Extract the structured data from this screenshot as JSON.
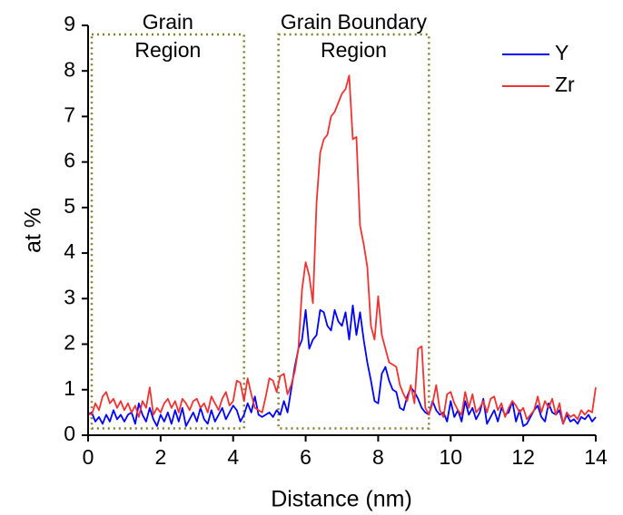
{
  "chart_data": {
    "type": "line",
    "xlabel": "Distance (nm)",
    "ylabel": "at %",
    "xlim": [
      0,
      14
    ],
    "ylim": [
      0,
      9
    ],
    "xticks": [
      0,
      2,
      4,
      6,
      8,
      10,
      12,
      14
    ],
    "yticks": [
      0,
      1,
      2,
      3,
      4,
      5,
      6,
      7,
      8,
      9
    ],
    "legend": "upper right",
    "x": [
      0,
      0.1,
      0.2,
      0.3,
      0.4,
      0.5,
      0.6,
      0.7,
      0.8,
      0.9,
      1,
      1.1,
      1.2,
      1.3,
      1.4,
      1.5,
      1.6,
      1.7,
      1.8,
      1.9,
      2,
      2.1,
      2.2,
      2.3,
      2.4,
      2.5,
      2.6,
      2.7,
      2.8,
      2.9,
      3,
      3.1,
      3.2,
      3.3,
      3.4,
      3.5,
      3.6,
      3.7,
      3.8,
      3.9,
      4,
      4.1,
      4.2,
      4.3,
      4.4,
      4.5,
      4.6,
      4.7,
      4.8,
      4.9,
      5,
      5.1,
      5.2,
      5.3,
      5.4,
      5.5,
      5.6,
      5.7,
      5.8,
      5.9,
      6,
      6.1,
      6.2,
      6.3,
      6.4,
      6.5,
      6.6,
      6.7,
      6.8,
      6.9,
      7,
      7.1,
      7.2,
      7.3,
      7.4,
      7.5,
      7.6,
      7.7,
      7.8,
      7.9,
      8,
      8.1,
      8.2,
      8.3,
      8.4,
      8.5,
      8.6,
      8.7,
      8.8,
      8.9,
      9,
      9.1,
      9.2,
      9.3,
      9.4,
      9.5,
      9.6,
      9.7,
      9.8,
      9.9,
      10,
      10.1,
      10.2,
      10.3,
      10.4,
      10.5,
      10.6,
      10.7,
      10.8,
      10.9,
      11,
      11.1,
      11.2,
      11.3,
      11.4,
      11.5,
      11.6,
      11.7,
      11.8,
      11.9,
      12,
      12.1,
      12.2,
      12.3,
      12.4,
      12.5,
      12.6,
      12.7,
      12.8,
      12.9,
      13,
      13.1,
      13.2,
      13.3,
      13.4,
      13.5,
      13.6,
      13.7,
      13.8,
      13.9,
      14
    ],
    "series": [
      {
        "name": "Y",
        "color": "#0000ff",
        "values": [
          0.45,
          0.5,
          0.3,
          0.4,
          0.25,
          0.45,
          0.3,
          0.55,
          0.35,
          0.45,
          0.3,
          0.45,
          0.5,
          0.25,
          0.7,
          0.45,
          0.3,
          0.6,
          0.35,
          0.2,
          0.45,
          0.3,
          0.5,
          0.25,
          0.55,
          0.3,
          0.6,
          0.2,
          0.35,
          0.5,
          0.3,
          0.6,
          0.35,
          0.25,
          0.55,
          0.3,
          0.45,
          0.6,
          0.35,
          0.5,
          0.65,
          0.55,
          0.3,
          0.45,
          0.7,
          0.5,
          0.85,
          0.45,
          0.4,
          0.45,
          0.5,
          0.4,
          0.55,
          0.45,
          0.75,
          0.5,
          1.0,
          1.5,
          1.9,
          2.1,
          2.75,
          1.9,
          2.1,
          2.2,
          2.75,
          2.7,
          2.4,
          2.3,
          2.75,
          2.5,
          2.4,
          2.7,
          2.1,
          2.85,
          2.2,
          2.7,
          2.1,
          1.6,
          1.2,
          0.75,
          0.7,
          1.35,
          1.5,
          1.2,
          1.0,
          0.95,
          0.6,
          0.55,
          0.85,
          1.05,
          0.95,
          0.8,
          0.6,
          0.5,
          0.45,
          0.75,
          0.55,
          0.45,
          0.5,
          0.3,
          0.75,
          0.4,
          0.55,
          0.3,
          0.75,
          0.45,
          0.6,
          0.35,
          0.5,
          0.8,
          0.25,
          0.4,
          0.55,
          0.3,
          0.6,
          0.45,
          0.5,
          0.75,
          0.3,
          0.55,
          0.2,
          0.25,
          0.4,
          0.55,
          0.65,
          0.4,
          0.3,
          0.7,
          0.5,
          0.45,
          0.55,
          0.25,
          0.45,
          0.3,
          0.35,
          0.25,
          0.4,
          0.35,
          0.45,
          0.3,
          0.4
        ]
      },
      {
        "name": "Zr",
        "color": "#ee3333",
        "values": [
          0.5,
          0.45,
          0.7,
          0.55,
          0.85,
          0.95,
          0.7,
          0.8,
          0.6,
          0.75,
          0.55,
          0.7,
          0.5,
          0.65,
          0.4,
          0.75,
          0.6,
          1.05,
          0.45,
          0.6,
          0.5,
          0.7,
          0.8,
          0.6,
          0.75,
          0.5,
          0.8,
          0.7,
          0.55,
          0.75,
          0.8,
          0.6,
          0.7,
          0.5,
          0.85,
          0.7,
          0.55,
          0.8,
          0.95,
          0.65,
          0.75,
          1.2,
          1.15,
          0.75,
          1.25,
          0.9,
          0.6,
          0.55,
          0.5,
          0.85,
          1.25,
          1.2,
          0.95,
          1.3,
          1.35,
          0.9,
          1.1,
          1.4,
          1.9,
          3.2,
          3.8,
          3.5,
          2.9,
          5.1,
          6.2,
          6.5,
          6.6,
          7.0,
          7.1,
          7.3,
          7.5,
          7.6,
          7.9,
          6.5,
          6.55,
          4.6,
          4.2,
          3.7,
          2.4,
          2.1,
          3.05,
          2.2,
          1.9,
          1.6,
          1.55,
          1.5,
          1.1,
          0.9,
          0.75,
          1.1,
          0.7,
          1.9,
          1.95,
          0.6,
          0.45,
          0.7,
          1.1,
          0.55,
          0.4,
          0.9,
          0.95,
          0.7,
          0.55,
          0.45,
          0.95,
          0.6,
          0.9,
          0.5,
          0.6,
          0.75,
          0.5,
          0.8,
          0.85,
          0.55,
          0.7,
          0.4,
          0.6,
          0.75,
          0.65,
          0.5,
          0.6,
          0.35,
          0.45,
          0.55,
          0.85,
          0.5,
          0.75,
          0.6,
          0.8,
          0.45,
          0.7,
          0.25,
          0.5,
          0.4,
          0.45,
          0.35,
          0.55,
          0.45,
          0.55,
          0.5,
          1.05
        ]
      }
    ],
    "annotations": [
      {
        "lines": [
          "Grain",
          "Region"
        ],
        "x0": 0.1,
        "x1": 4.3,
        "y0": 0.15,
        "y1": 8.8
      },
      {
        "lines": [
          "Grain Boundary",
          "Region"
        ],
        "x0": 5.25,
        "x1": 9.4,
        "y0": 0.15,
        "y1": 8.8
      }
    ],
    "region_color": "#7f7f30"
  }
}
